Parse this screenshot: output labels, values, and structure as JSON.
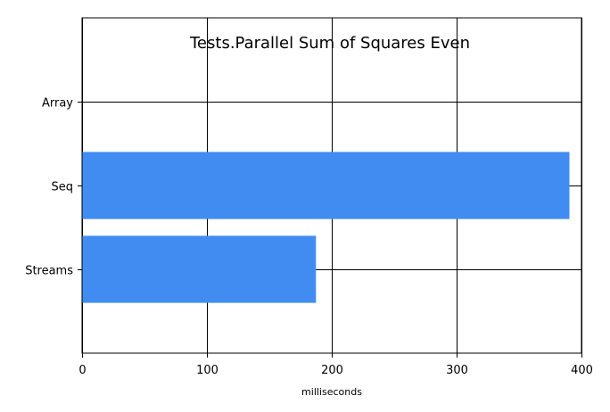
{
  "chart_data": {
    "type": "bar",
    "orientation": "horizontal",
    "title": "Tests.Parallel Sum of Squares Even",
    "xlabel": "milliseconds",
    "ylabel": "",
    "categories": [
      "Array",
      "Seq",
      "Streams"
    ],
    "values": [
      0,
      390,
      187
    ],
    "xlim": [
      0,
      400
    ],
    "xticks": [
      0,
      100,
      200,
      300,
      400
    ],
    "grid": true,
    "legend": "none",
    "bar_color": "#418cf0"
  }
}
